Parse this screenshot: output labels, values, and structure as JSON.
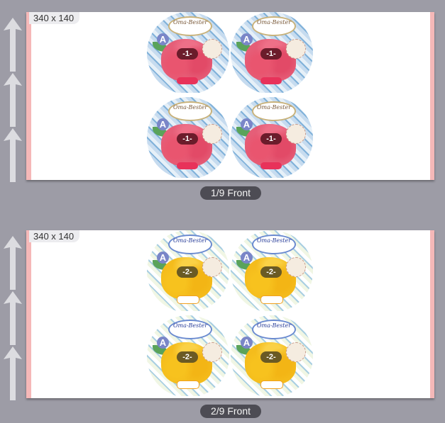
{
  "pages": [
    {
      "size_label": "340 x 140",
      "page_label": "1/9 Front",
      "lid_number": "-1-",
      "badge": "A",
      "colors": {
        "fruit": "#e55e78",
        "number_bg": "#6b1c2b"
      }
    },
    {
      "size_label": "340 x 140",
      "page_label": "2/9 Front",
      "lid_number": "-2-",
      "badge": "A",
      "colors": {
        "fruit": "#f4bc1c",
        "number_bg": "#6a5a24"
      }
    }
  ],
  "logo_text": "Oma-Bester",
  "colors": {
    "background": "#9d9ca6",
    "pill": "#4d4c54",
    "edge_strip": "#f5b8b8"
  }
}
